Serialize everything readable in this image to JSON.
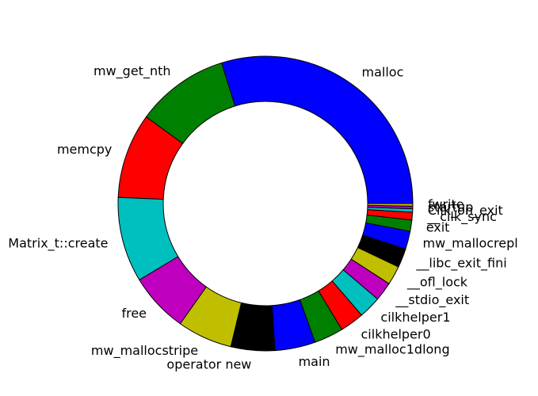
{
  "chart_data": {
    "type": "pie",
    "style": "donut",
    "start_angle_deg": 0,
    "direction": "counterclockwise",
    "categories": [
      "malloc",
      "mw_get_nth",
      "memcpy",
      "Matrix_t::create",
      "free",
      "mw_mallocstripe",
      "operator new",
      "main",
      "mw_malloc1dlong",
      "cilkhelper0",
      "cilkhelper1",
      "__stdio_exit",
      "__ofl_lock",
      "__libc_exit_fini",
      "mw_mallocrepl",
      "exit",
      "__cilk_sync",
      "Cilk_on_exit",
      "startup",
      "fwrite"
    ],
    "values": [
      31.6,
      10.8,
      9.9,
      9.9,
      6.9,
      6.4,
      5.1,
      4.7,
      3.4,
      2.8,
      2.6,
      2.2,
      2.2,
      2.2,
      2.1,
      1.3,
      0.9,
      0.4,
      0.3,
      0.3
    ],
    "colors": [
      "#0000ff",
      "#008000",
      "#ff0000",
      "#00bfbf",
      "#bf00bf",
      "#bfbf00",
      "#000000",
      "#0000ff",
      "#008000",
      "#ff0000",
      "#00bfbf",
      "#bf00bf",
      "#bfbf00",
      "#000000",
      "#0000ff",
      "#008000",
      "#ff0000",
      "#00bfbf",
      "#bf00bf",
      "#bfbf00"
    ],
    "edge_color": "#000000",
    "background": "#ffffff"
  }
}
